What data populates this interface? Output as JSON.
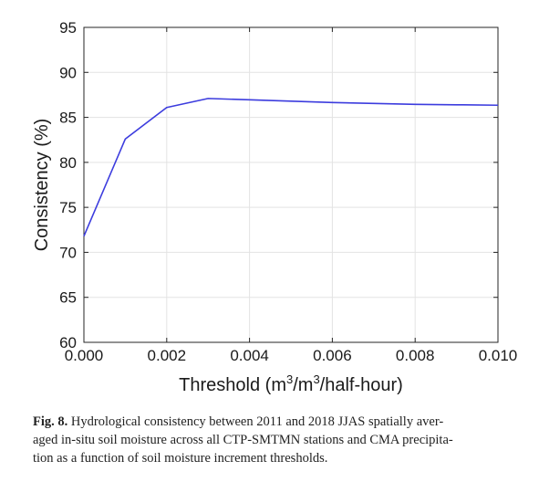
{
  "chart_data": {
    "type": "line",
    "x": [
      0.0,
      0.001,
      0.002,
      0.003,
      0.004,
      0.005,
      0.006,
      0.007,
      0.008,
      0.009,
      0.01
    ],
    "series": [
      {
        "values": [
          71.8,
          82.6,
          86.1,
          87.1,
          86.95,
          86.8,
          86.65,
          86.55,
          86.45,
          86.4,
          86.35
        ]
      }
    ],
    "xlim": [
      0.0,
      0.01
    ],
    "ylim": [
      60,
      95
    ],
    "xticks": [
      "0.000",
      "0.002",
      "0.004",
      "0.006",
      "0.008",
      "0.010"
    ],
    "yticks": [
      "60",
      "65",
      "70",
      "75",
      "80",
      "85",
      "90",
      "95"
    ],
    "xlabel_pre": "Threshold (m",
    "xlabel_sup1": "3",
    "xlabel_mid": "/m",
    "xlabel_sup2": "3",
    "xlabel_post": "/half-hour)",
    "ylabel": "Consistency (%)",
    "grid": true,
    "line_color": "#3c3cde"
  },
  "caption": {
    "fig_label": "Fig. 8.",
    "line1": "Hydrological consistency between 2011 and 2018 JJAS spatially aver-",
    "line2": "aged in-situ soil moisture across all CTP-SMTMN stations and CMA precipita-",
    "line3": "tion as a function of soil moisture increment thresholds."
  }
}
